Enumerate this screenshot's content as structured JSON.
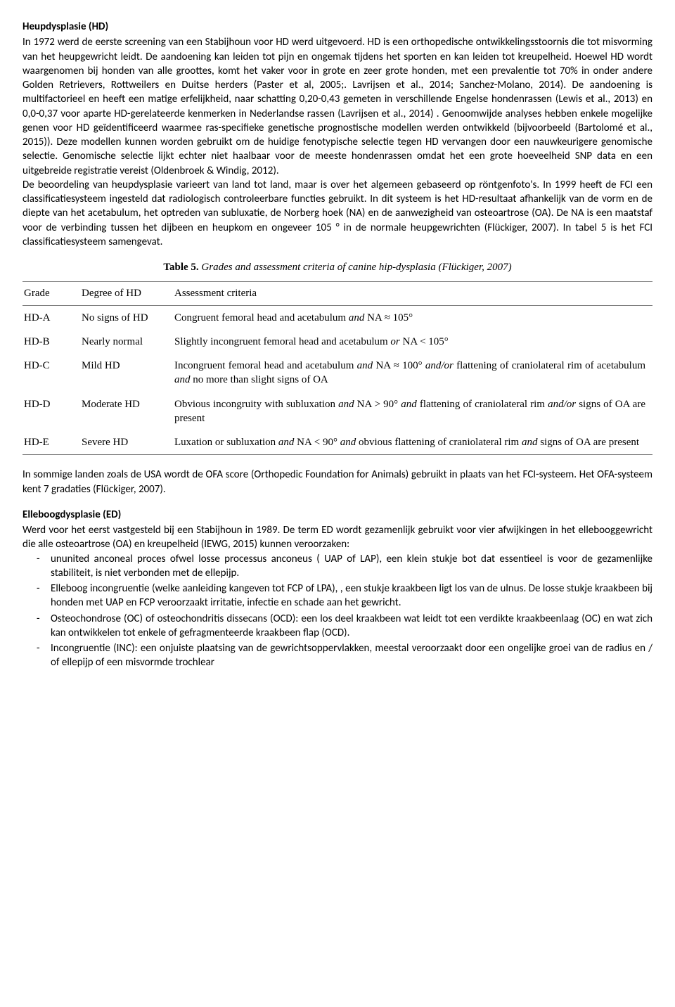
{
  "hd": {
    "heading": "Heupdysplasie (HD)",
    "body": "In 1972 werd de eerste screening van een Stabijhoun voor HD werd uitgevoerd. HD is een orthopedische ontwikkelingsstoornis die tot misvorming van het heupgewricht leidt. De aandoening kan leiden tot pijn en ongemak tijdens het sporten en kan leiden tot kreupelheid. Hoewel HD wordt waargenomen bij honden van alle groottes, komt het vaker voor in grote en zeer grote honden, met een prevalentie tot 70% in onder andere Golden Retrievers, Rottweilers en Duitse herders (Paster et al, 2005;. Lavrijsen et al., 2014; Sanchez-Molano, 2014). De aandoening is multifactorieel en heeft een matige erfelijkheid, naar schatting 0,20-0,43 gemeten in verschillende Engelse hondenrassen (Lewis et al., 2013) en 0,0-0,37 voor aparte HD-gerelateerde kenmerken in Nederlandse rassen (Lavrijsen et al., 2014) . Genoomwijde analyses hebben enkele mogelijke genen voor HD geïdentificeerd waarmee ras-specifieke genetische prognostische modellen werden ontwikkeld (bijvoorbeeld (Bartolomé et al., 2015)). Deze modellen kunnen worden gebruikt om de huidige fenotypische selectie tegen HD vervangen door een nauwkeurigere genomische selectie. Genomische selectie lijkt echter niet haalbaar voor de meeste hondenrassen omdat het een grote hoeveelheid SNP data en een uitgebreide registratie vereist (Oldenbroek & Windig, 2012).",
    "body2": "De beoordeling van heupdysplasie varieert van land tot land, maar is over het algemeen gebaseerd op röntgenfoto's. In 1999 heeft de FCI een classificatiesysteem ingesteld dat radiologisch controleerbare functies gebruikt. In dit systeem is het HD-resultaat afhankelijk van de vorm en de diepte van het acetabulum, het optreden van subluxatie, de Norberg hoek (NA) en de aanwezigheid van osteoartrose (OA). De NA is een maatstaf voor de verbinding tussen het dijbeen en heupkom en ongeveer 105 ° in de normale heupgewrichten (Flückiger, 2007). In tabel 5 is het FCI classificatiesysteem samengevat."
  },
  "table5": {
    "caption_bold": "Table 5.",
    "caption_italic": " Grades and assessment criteria of canine hip-dysplasia (Flückiger, 2007)",
    "columns": [
      "Grade",
      "Degree of HD",
      "Assessment criteria"
    ],
    "rows": [
      {
        "grade": "HD-A",
        "degree": "No signs of HD",
        "criteria_html": "Congruent femoral head and acetabulum <span class=\"italic\">and</span> NA ≈ 105°"
      },
      {
        "grade": "HD-B",
        "degree": "Nearly normal",
        "criteria_html": "Slightly incongruent femoral head and acetabulum <span class=\"italic\">or</span> NA &lt; 105°"
      },
      {
        "grade": "HD-C",
        "degree": "Mild HD",
        "criteria_html": "Incongruent femoral head and acetabulum <span class=\"italic\">and</span> NA ≈ 100° <span class=\"italic\">and/or</span> flattening of craniolateral rim of acetabulum <span class=\"italic\">and</span> no more than slight signs of OA"
      },
      {
        "grade": "HD-D",
        "degree": "Moderate HD",
        "criteria_html": "Obvious incongruity with subluxation <span class=\"italic\">and</span> NA &gt; 90° <span class=\"italic\">and</span> flattening of craniolateral rim <span class=\"italic\">and/or</span> signs of OA are present"
      },
      {
        "grade": "HD-E",
        "degree": "Severe HD",
        "criteria_html": "Luxation or subluxation <span class=\"italic\">and</span> NA &lt; 90° <span class=\"italic\">and</span> obvious flattening of craniolateral rim <span class=\"italic\">and</span> signs of OA are present"
      }
    ]
  },
  "ofa": {
    "body": "In sommige landen zoals de USA wordt de OFA score (Orthopedic Foundation for Animals) gebruikt in plaats van het FCI-systeem. Het OFA-systeem kent 7 gradaties (Flückiger, 2007)."
  },
  "ed": {
    "heading": "Elleboogdysplasie (ED)",
    "intro": "Werd voor het eerst vastgesteld bij een Stabijhoun in 1989. De term ED wordt gezamenlijk gebruikt voor vier afwijkingen in het ellebooggewricht die alle osteoartrose (OA) en kreupelheid (IEWG, 2015) kunnen veroorzaken:",
    "items": [
      "ununited anconeal proces ofwel losse processus anconeus ( UAP of LAP), een klein stukje bot dat essentieel is voor de gezamenlijke stabiliteit, is niet verbonden met de ellepijp.",
      "Elleboog incongruentie (welke aanleiding kangeven tot FCP of LPA), , een stukje kraakbeen ligt los van de ulnus. De losse stukje kraakbeen bij honden met UAP en FCP veroorzaakt irritatie, infectie en schade aan het gewricht.",
      "Osteochondrose (OC) of osteochondritis dissecans (OCD): een los deel kraakbeen wat leidt tot een verdikte kraakbeenlaag (OC) en wat zich kan ontwikkelen tot enkele of gefragmenteerde kraakbeen flap (OCD).",
      "Incongruentie (INC): een onjuiste plaatsing van de gewrichtsoppervlakken, meestal veroorzaakt door een ongelijke groei van de radius en / of ellepijp of een misvormde trochlear"
    ]
  }
}
